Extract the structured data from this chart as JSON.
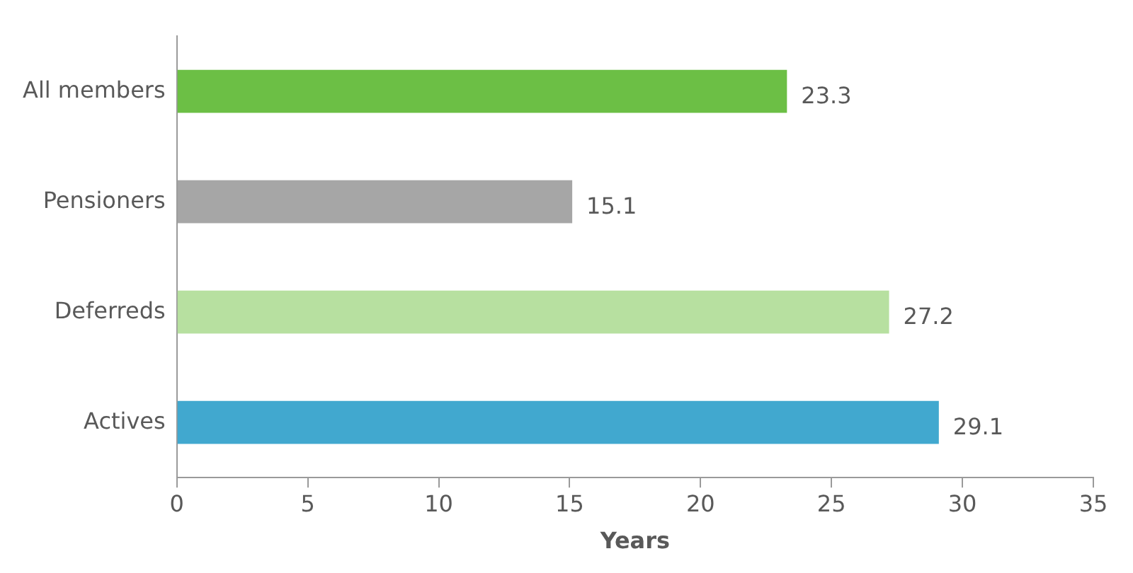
{
  "chart_data": {
    "type": "bar",
    "orientation": "horizontal",
    "xlabel": "Years",
    "categories": [
      "All members",
      "Pensioners",
      "Deferreds",
      "Actives"
    ],
    "values": [
      23.3,
      15.1,
      27.2,
      29.1
    ],
    "colors": [
      "#6cbf45",
      "#a6a6a6",
      "#b7e0a0",
      "#41a8cf"
    ],
    "xlim": [
      0,
      35
    ],
    "xticks": [
      0,
      5,
      10,
      15,
      20,
      25,
      30,
      35
    ],
    "data_labels": true
  }
}
